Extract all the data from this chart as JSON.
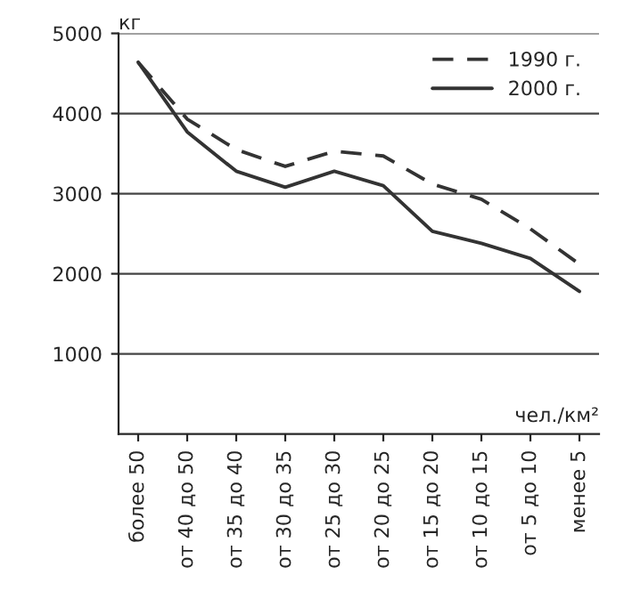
{
  "chart_data": {
    "type": "line",
    "ylabel": "кг",
    "xlabel": "чел./км²",
    "categories": [
      "более 50",
      "от 40 до 50",
      "от 35 до 40",
      "от 30 до 35",
      "от 25 до 30",
      "от 20 до 25",
      "от 15 до 20",
      "от 10 до 15",
      "от 5 до 10",
      "менее 5"
    ],
    "series": [
      {
        "name": "1990 г.",
        "color": "#333333",
        "line_style": "dashed",
        "values": [
          4640,
          3930,
          3550,
          3340,
          3530,
          3470,
          3120,
          2930,
          2560,
          2120
        ]
      },
      {
        "name": "2000 г.",
        "color": "#333333",
        "line_style": "solid",
        "values": [
          4640,
          3770,
          3280,
          3080,
          3280,
          3100,
          2530,
          2380,
          2190,
          1780
        ]
      }
    ],
    "ylim": [
      0,
      5000
    ],
    "yticks": [
      1000,
      2000,
      3000,
      4000,
      5000
    ],
    "grid": "y",
    "legend": "top right"
  }
}
